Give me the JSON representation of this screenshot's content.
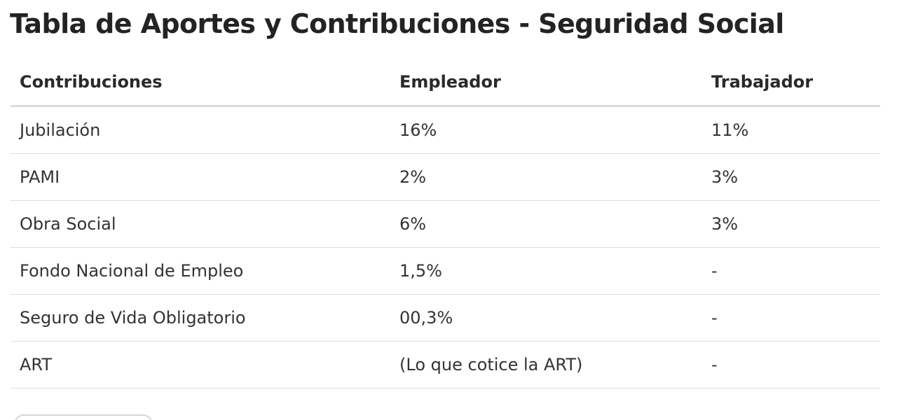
{
  "page": {
    "title": "Tabla de Aportes y Contribuciones - Seguridad Social"
  },
  "table": {
    "headers": {
      "contribuciones": "Contribuciones",
      "empleador": "Empleador",
      "trabajador": "Trabajador"
    },
    "rows": [
      {
        "contribucion": "Jubilación",
        "empleador": "16%",
        "trabajador": "11%"
      },
      {
        "contribucion": "PAMI",
        "empleador": "2%",
        "trabajador": "3%"
      },
      {
        "contribucion": "Obra Social",
        "empleador": "6%",
        "trabajador": "3%"
      },
      {
        "contribucion": "Fondo Nacional de Empleo",
        "empleador": "1,5%",
        "trabajador": "-"
      },
      {
        "contribucion": "Seguro de Vida Obligatorio",
        "empleador": "00,3%",
        "trabajador": "-"
      },
      {
        "contribucion": "ART",
        "empleador": "(Lo que cotice la ART)",
        "trabajador": "-"
      }
    ]
  },
  "colors": {
    "text": "#2d2d2d",
    "header_rule": "#dcdcdc",
    "row_rule": "#dddddd"
  }
}
